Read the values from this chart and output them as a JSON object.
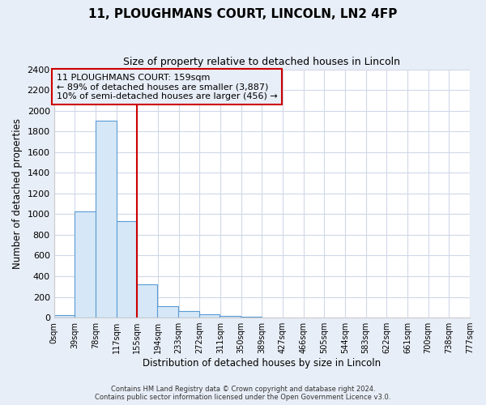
{
  "title": "11, PLOUGHMANS COURT, LINCOLN, LN2 4FP",
  "subtitle": "Size of property relative to detached houses in Lincoln",
  "xlabel": "Distribution of detached houses by size in Lincoln",
  "ylabel": "Number of detached properties",
  "bar_left_edges": [
    0,
    39,
    78,
    117,
    155,
    194,
    233,
    272,
    311,
    350,
    389,
    427,
    466,
    505,
    544,
    583,
    622,
    661,
    700,
    738
  ],
  "bar_heights": [
    25,
    1025,
    1900,
    935,
    320,
    110,
    60,
    30,
    15,
    10,
    0,
    0,
    0,
    0,
    0,
    0,
    0,
    0,
    0,
    0
  ],
  "bin_width": 39,
  "bar_color": "#d6e8f7",
  "bar_edge_color": "#5b9bd5",
  "red_line_x": 155,
  "ylim": [
    0,
    2400
  ],
  "yticks": [
    0,
    200,
    400,
    600,
    800,
    1000,
    1200,
    1400,
    1600,
    1800,
    2000,
    2200,
    2400
  ],
  "xtick_labels": [
    "0sqm",
    "39sqm",
    "78sqm",
    "117sqm",
    "155sqm",
    "194sqm",
    "233sqm",
    "272sqm",
    "311sqm",
    "350sqm",
    "389sqm",
    "427sqm",
    "466sqm",
    "505sqm",
    "544sqm",
    "583sqm",
    "622sqm",
    "661sqm",
    "700sqm",
    "738sqm",
    "777sqm"
  ],
  "annotation_line1": "11 PLOUGHMANS COURT: 159sqm",
  "annotation_line2": "← 89% of detached houses are smaller (3,887)",
  "annotation_line3": "10% of semi-detached houses are larger (456) →",
  "footer1": "Contains HM Land Registry data © Crown copyright and database right 2024.",
  "footer2": "Contains public sector information licensed under the Open Government Licence v3.0.",
  "outer_background": "#e8eef7",
  "plot_background": "#ffffff",
  "grid_color": "#d0d8e8",
  "box_color": "#cc0000",
  "title_fontsize": 11,
  "subtitle_fontsize": 9
}
